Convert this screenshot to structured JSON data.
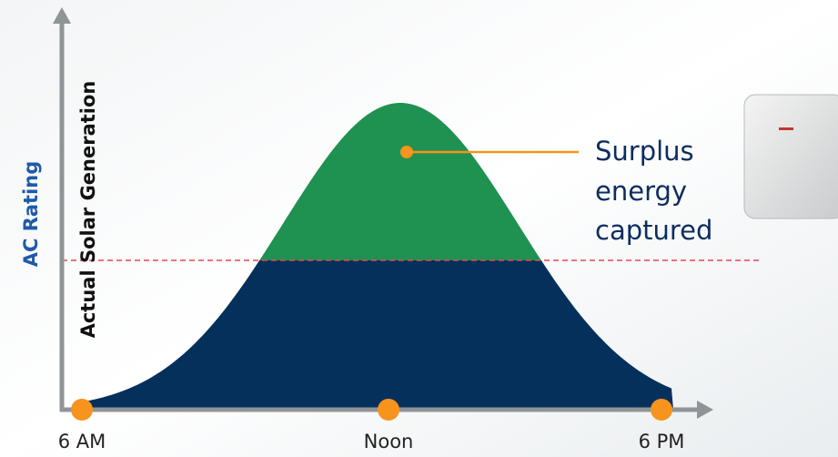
{
  "axes": {
    "y_label_outer": "AC Rating",
    "y_label_inner": "Actual Solar Generation",
    "x_labels": [
      "6 AM",
      "Noon",
      "6 PM"
    ]
  },
  "callout": {
    "lines": [
      "Surplus",
      "energy",
      "captured"
    ]
  }
}
